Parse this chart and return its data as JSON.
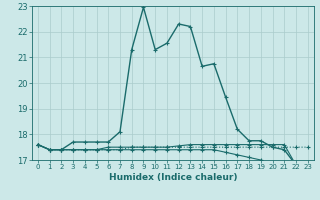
{
  "xlabel": "Humidex (Indice chaleur)",
  "bg_color": "#cce8e8",
  "grid_color": "#aacccc",
  "line_color": "#1a6b6b",
  "xlim": [
    -0.5,
    23.5
  ],
  "ylim": [
    17.0,
    23.0
  ],
  "yticks": [
    17,
    18,
    19,
    20,
    21,
    22,
    23
  ],
  "xticks": [
    0,
    1,
    2,
    3,
    4,
    5,
    6,
    7,
    8,
    9,
    10,
    11,
    12,
    13,
    14,
    15,
    16,
    17,
    18,
    19,
    20,
    21,
    22,
    23
  ],
  "lines": [
    {
      "y": [
        17.6,
        17.4,
        17.4,
        17.7,
        17.7,
        17.7,
        17.7,
        18.1,
        21.3,
        22.95,
        21.3,
        21.55,
        22.3,
        22.2,
        20.65,
        20.75,
        19.45,
        18.2,
        17.75,
        17.75,
        17.5,
        17.4,
        16.8,
        16.8
      ],
      "style": "-",
      "lw": 1.0
    },
    {
      "y": [
        17.6,
        17.4,
        17.4,
        17.4,
        17.4,
        17.4,
        17.4,
        17.4,
        17.4,
        17.4,
        17.4,
        17.4,
        17.4,
        17.4,
        17.4,
        17.4,
        17.3,
        17.2,
        17.1,
        17.0,
        16.9,
        16.8,
        16.65,
        16.7
      ],
      "style": "-",
      "lw": 0.8
    },
    {
      "y": [
        17.6,
        17.4,
        17.4,
        17.4,
        17.4,
        17.4,
        17.5,
        17.5,
        17.5,
        17.5,
        17.5,
        17.5,
        17.55,
        17.6,
        17.6,
        17.6,
        17.6,
        17.6,
        17.6,
        17.6,
        17.6,
        17.6,
        16.8,
        16.8
      ],
      "style": "-",
      "lw": 0.8
    },
    {
      "y": [
        17.6,
        17.4,
        17.4,
        17.4,
        17.4,
        17.4,
        17.4,
        17.4,
        17.5,
        17.5,
        17.5,
        17.5,
        17.5,
        17.5,
        17.5,
        17.5,
        17.5,
        17.5,
        17.5,
        17.5,
        17.5,
        17.5,
        17.5,
        17.5
      ],
      "style": ":",
      "lw": 0.8
    }
  ]
}
